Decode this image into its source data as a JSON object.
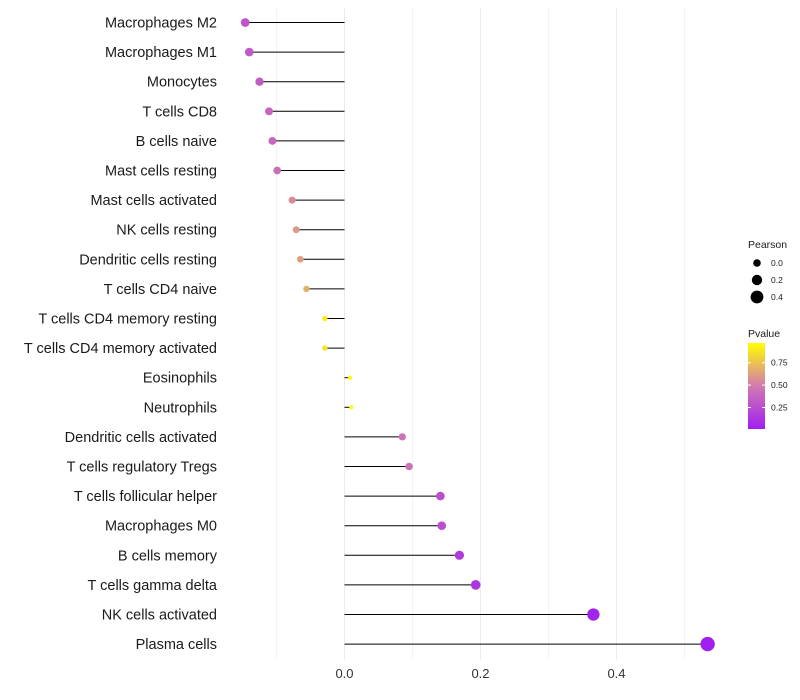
{
  "chart_data": {
    "type": "lollipop",
    "title": "",
    "xlabel": "",
    "ylabel": "",
    "xlim": [
      -0.15,
      0.55
    ],
    "xticks": [
      0.0,
      0.2,
      0.4
    ],
    "xtick_labels": [
      "0.0",
      "0.2",
      "0.4"
    ],
    "grid": true,
    "legend_position": "right",
    "categories": [
      "Macrophages M2",
      "Macrophages M1",
      "Monocytes",
      "T cells CD8",
      "B cells naive",
      "Mast cells resting",
      "Mast cells activated",
      "NK cells resting",
      "Dendritic cells resting",
      "T cells CD4 naive",
      "T cells CD4 memory resting",
      "T cells CD4 memory activated",
      "Eosinophils",
      "Neutrophils",
      "Dendritic cells activated",
      "T cells regulatory  Tregs",
      "T cells follicular helper",
      "Macrophages M0",
      "B cells memory",
      "T cells gamma delta",
      "NK cells activated",
      "Plasma cells"
    ],
    "values": [
      -0.146,
      -0.14,
      -0.125,
      -0.111,
      -0.106,
      -0.099,
      -0.077,
      -0.071,
      -0.065,
      -0.056,
      -0.029,
      -0.029,
      0.008,
      0.01,
      0.085,
      0.095,
      0.141,
      0.143,
      0.169,
      0.193,
      0.366,
      0.534
    ],
    "pvalues": [
      0.3,
      0.32,
      0.33,
      0.38,
      0.38,
      0.43,
      0.55,
      0.6,
      0.62,
      0.68,
      0.9,
      0.88,
      0.96,
      0.96,
      0.45,
      0.45,
      0.26,
      0.26,
      0.16,
      0.12,
      0.03,
      0.01
    ],
    "size_legend": {
      "title": "Pearson",
      "values": [
        0.0,
        0.2,
        0.4
      ],
      "labels": [
        "0.0",
        "0.2",
        "0.4"
      ]
    },
    "color_legend": {
      "title": "Pvalue",
      "ticks": [
        0.25,
        0.5,
        0.75
      ],
      "labels": [
        "0.25",
        "0.50",
        "0.75"
      ],
      "low_color": "#a020f0",
      "mid_color": "#d27ab0",
      "high_color": "#ffff00",
      "range": [
        0.01,
        0.97
      ]
    },
    "colors": {
      "stem": "#000000",
      "grid": "#ebebeb"
    }
  }
}
